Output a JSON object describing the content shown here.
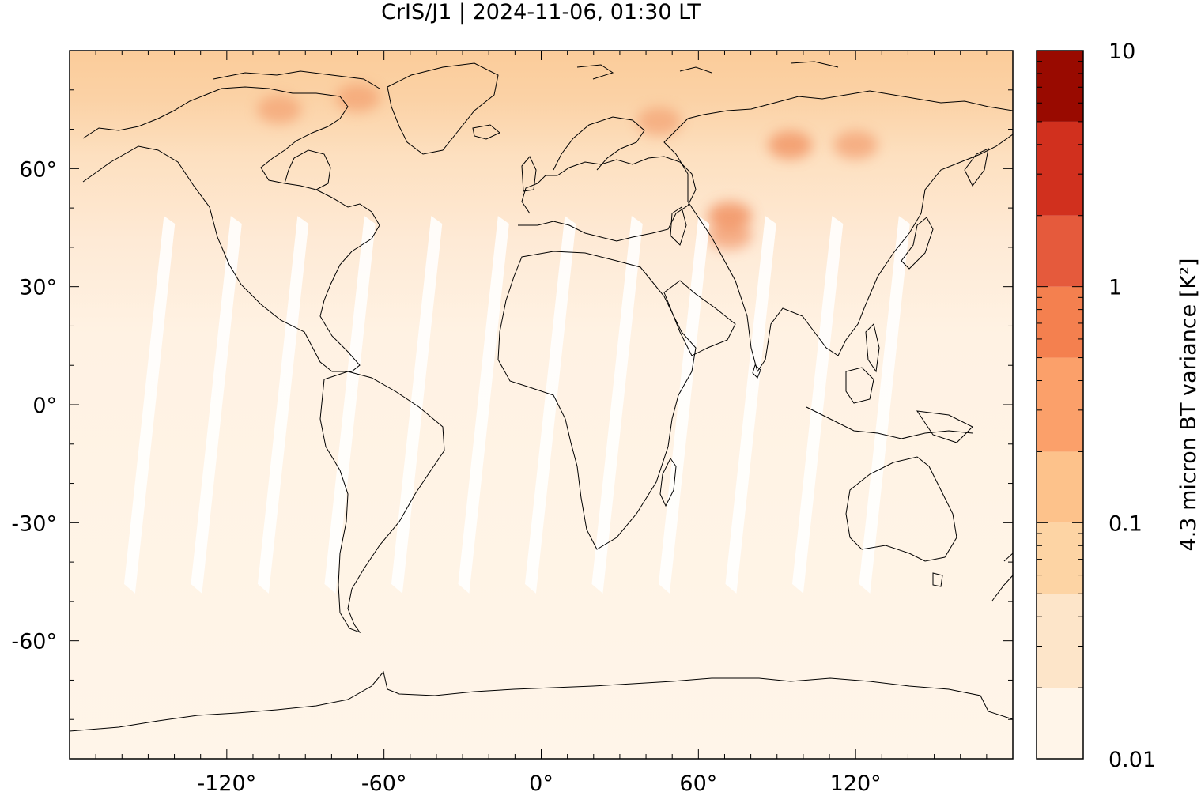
{
  "title": "CrIS/J1 | 2024-11-06, 01:30 LT",
  "map": {
    "projection": "equirectangular",
    "lon_range": [
      -180,
      180
    ],
    "lat_range": [
      -90,
      90
    ],
    "lon_ticks": [
      {
        "value": -120,
        "label": "-120°"
      },
      {
        "value": -60,
        "label": "-60°"
      },
      {
        "value": 0,
        "label": "0°"
      },
      {
        "value": 60,
        "label": "60°"
      },
      {
        "value": 120,
        "label": "120°"
      }
    ],
    "lat_ticks": [
      {
        "value": 60,
        "label": "60°"
      },
      {
        "value": 30,
        "label": "30°"
      },
      {
        "value": 0,
        "label": "0°"
      },
      {
        "value": -30,
        "label": "-30°"
      },
      {
        "value": -60,
        "label": "-60°"
      }
    ],
    "background_color": "#fff5e9",
    "coastline_color": "#000000",
    "orbit_gap_color": "#ffffff",
    "hotspots": [
      {
        "lon": 95,
        "lat": 66,
        "level": 0.7
      },
      {
        "lon": 120,
        "lat": 66,
        "level": 0.55
      },
      {
        "lon": 72,
        "lat": 48,
        "level": 0.75
      },
      {
        "lon": 72,
        "lat": 43,
        "level": 0.6
      },
      {
        "lon": 45,
        "lat": 72,
        "level": 0.5
      },
      {
        "lon": -70,
        "lat": 78,
        "level": 0.5
      },
      {
        "lon": -100,
        "lat": 75,
        "level": 0.5
      }
    ]
  },
  "colorbar": {
    "label": "4.3 micron BT variance [K²]",
    "scale": "log",
    "min": 0.01,
    "max": 10,
    "tick_labels": [
      {
        "value": 10,
        "label": "10"
      },
      {
        "value": 1,
        "label": "1"
      },
      {
        "value": 0.1,
        "label": "0.1"
      },
      {
        "value": 0.01,
        "label": "0.01"
      }
    ],
    "bins": [
      {
        "from": 0.01,
        "to": 0.02,
        "color": "#fff5e9"
      },
      {
        "from": 0.02,
        "to": 0.05,
        "color": "#fde5c9"
      },
      {
        "from": 0.05,
        "to": 0.1,
        "color": "#fdd4a4"
      },
      {
        "from": 0.1,
        "to": 0.2,
        "color": "#fdc28b"
      },
      {
        "from": 0.2,
        "to": 0.5,
        "color": "#fba06a"
      },
      {
        "from": 0.5,
        "to": 1,
        "color": "#f4804f"
      },
      {
        "from": 1,
        "to": 2,
        "color": "#e55a3c"
      },
      {
        "from": 2,
        "to": 5,
        "color": "#d1301e"
      },
      {
        "from": 5,
        "to": 10,
        "color": "#990a00"
      }
    ]
  }
}
